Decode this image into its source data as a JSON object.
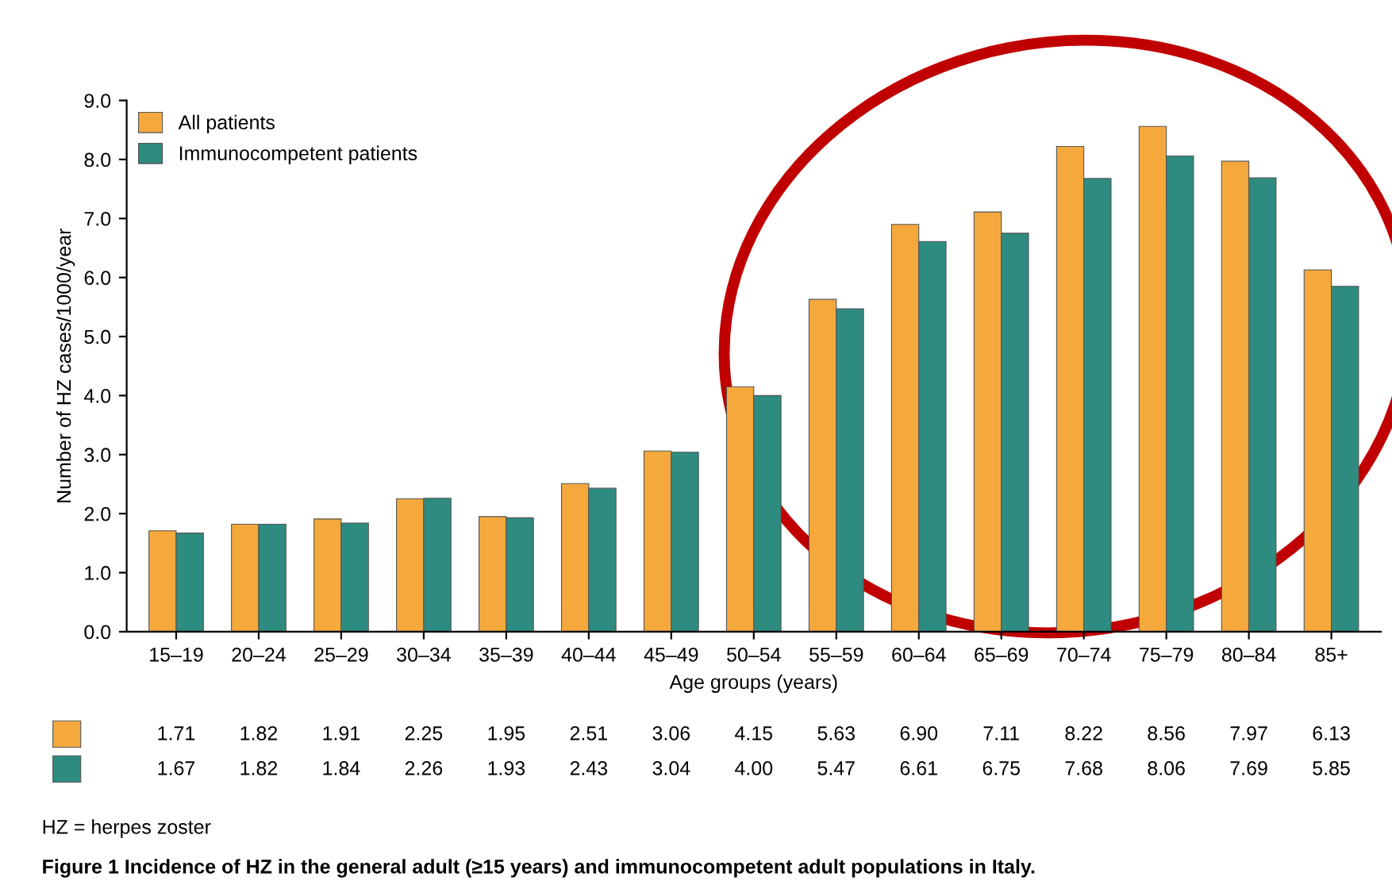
{
  "chart_data": {
    "type": "bar",
    "title": "Figure 1 Incidence of HZ in the general adult (≥15 years) and immunocompetent adult populations in Italy.",
    "xlabel": "Age groups (years)",
    "ylabel": "Number of HZ cases/1000/year",
    "categories": [
      "15–19",
      "20–24",
      "25–29",
      "30–34",
      "35–39",
      "40–44",
      "45–49",
      "50–54",
      "55–59",
      "60–64",
      "65–69",
      "70–74",
      "75–79",
      "80–84",
      "85+"
    ],
    "series": [
      {
        "name": "All patients",
        "color": "#f5a83c",
        "values": [
          1.71,
          1.82,
          1.91,
          2.25,
          1.95,
          2.51,
          3.06,
          4.15,
          5.63,
          6.9,
          7.11,
          8.22,
          8.56,
          7.97,
          6.13
        ],
        "value_labels": [
          "1.71",
          "1.82",
          "1.91",
          "2.25",
          "1.95",
          "2.51",
          "3.06",
          "4.15",
          "5.63",
          "6.90",
          "7.11",
          "8.22",
          "8.56",
          "7.97",
          "6.13"
        ]
      },
      {
        "name": "Immunocompetent patients",
        "color": "#2e8b80",
        "values": [
          1.67,
          1.82,
          1.84,
          2.26,
          1.93,
          2.43,
          3.04,
          4.0,
          5.47,
          6.61,
          6.75,
          7.68,
          8.06,
          7.69,
          5.85
        ],
        "value_labels": [
          "1.67",
          "1.82",
          "1.84",
          "2.26",
          "1.93",
          "2.43",
          "3.04",
          "4.00",
          "5.47",
          "6.61",
          "6.75",
          "7.68",
          "8.06",
          "7.69",
          "5.85"
        ]
      }
    ],
    "ylim": [
      0,
      9
    ],
    "yticks": [
      {
        "value": 0,
        "label": "0.0"
      },
      {
        "value": 1,
        "label": "1.0"
      },
      {
        "value": 2,
        "label": "2.0"
      },
      {
        "value": 3,
        "label": "3.0"
      },
      {
        "value": 4,
        "label": "4.0"
      },
      {
        "value": 5,
        "label": "5.0"
      },
      {
        "value": 6,
        "label": "6.0"
      },
      {
        "value": 7,
        "label": "7.0"
      },
      {
        "value": 8,
        "label": "8.0"
      },
      {
        "value": 9,
        "label": "9.0"
      }
    ],
    "grid": false,
    "legend": "top left",
    "annotations": [
      "HZ = herpes zoster"
    ]
  }
}
